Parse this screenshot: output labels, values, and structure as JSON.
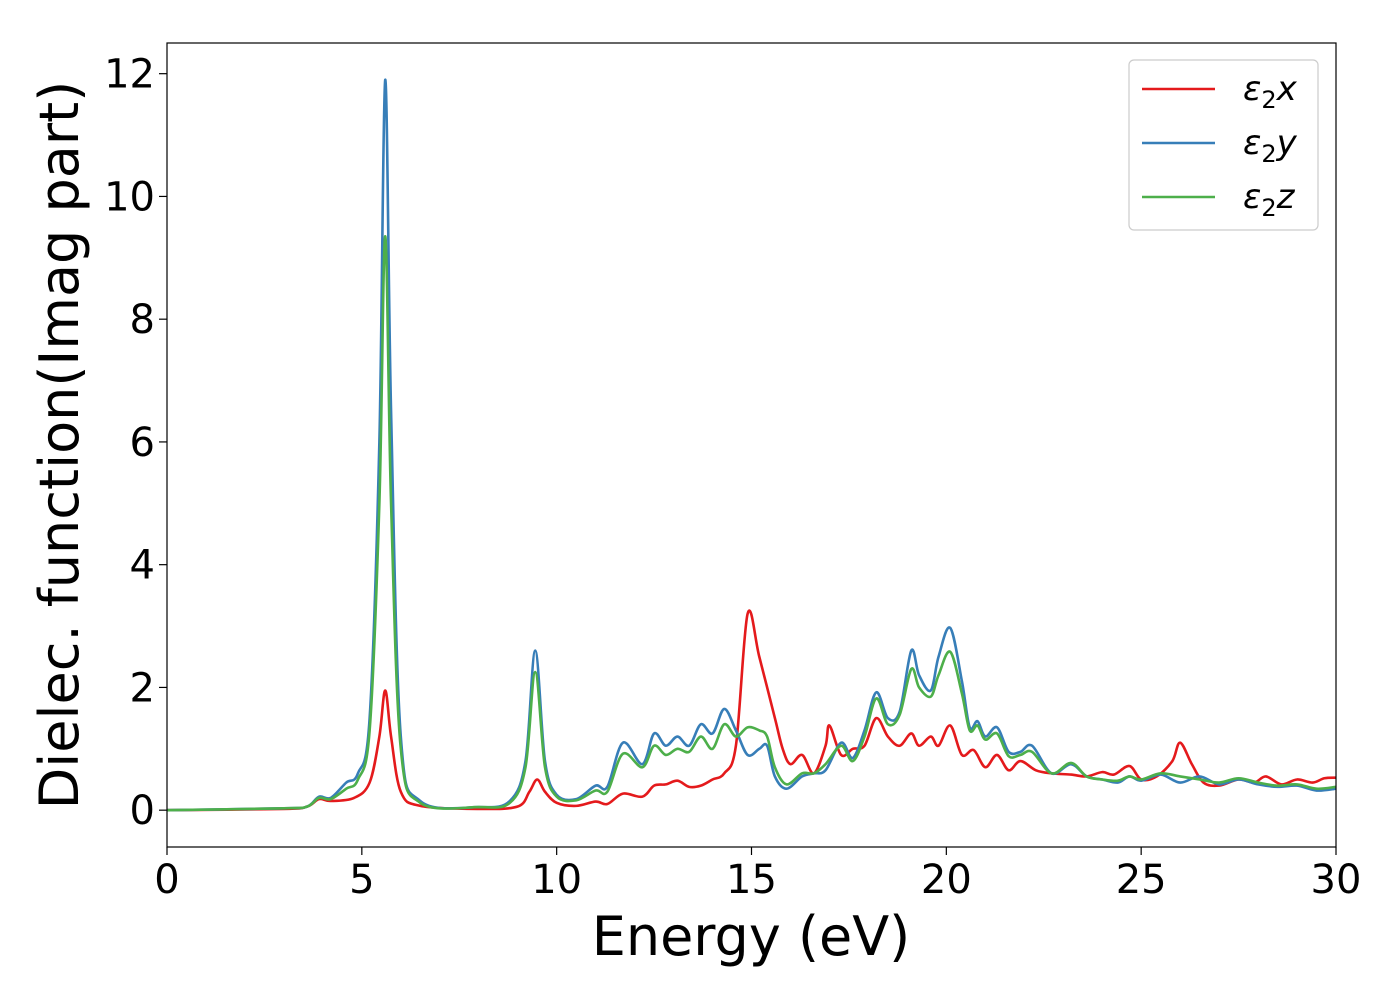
{
  "chart_data": {
    "type": "line",
    "title": "",
    "xlabel": "Energy (eV)",
    "ylabel": "Dielec. function(Imag part)",
    "xlim": [
      0,
      30
    ],
    "ylim": [
      -0.6,
      12.5
    ],
    "xticks": [
      0,
      5,
      10,
      15,
      20,
      25,
      30
    ],
    "yticks": [
      0,
      2,
      4,
      6,
      8,
      10,
      12
    ],
    "xtick_labels": [
      "0",
      "5",
      "10",
      "15",
      "20",
      "25",
      "30"
    ],
    "ytick_labels": [
      "0",
      "2",
      "4",
      "6",
      "8",
      "10",
      "12"
    ],
    "grid": false,
    "legend_position": "top-right",
    "series": [
      {
        "name": "ε₂x",
        "legend": {
          "base": "ε",
          "sub": "2",
          "suffix": "x"
        },
        "color": "#e41a1c",
        "points": [
          [
            0,
            0
          ],
          [
            3,
            0.02
          ],
          [
            3.6,
            0.06
          ],
          [
            3.9,
            0.18
          ],
          [
            4.2,
            0.15
          ],
          [
            4.8,
            0.2
          ],
          [
            5.2,
            0.45
          ],
          [
            5.45,
            1.2
          ],
          [
            5.6,
            1.95
          ],
          [
            5.75,
            1.2
          ],
          [
            6.0,
            0.3
          ],
          [
            6.5,
            0.07
          ],
          [
            8,
            0.02
          ],
          [
            9,
            0.06
          ],
          [
            9.3,
            0.3
          ],
          [
            9.5,
            0.5
          ],
          [
            9.7,
            0.3
          ],
          [
            10,
            0.12
          ],
          [
            10.5,
            0.07
          ],
          [
            11,
            0.14
          ],
          [
            11.3,
            0.1
          ],
          [
            11.7,
            0.27
          ],
          [
            12.2,
            0.22
          ],
          [
            12.5,
            0.4
          ],
          [
            12.8,
            0.42
          ],
          [
            13.1,
            0.48
          ],
          [
            13.4,
            0.38
          ],
          [
            13.7,
            0.4
          ],
          [
            14.0,
            0.5
          ],
          [
            14.3,
            0.6
          ],
          [
            14.6,
            1.05
          ],
          [
            14.9,
            3.2
          ],
          [
            15.2,
            2.5
          ],
          [
            15.6,
            1.5
          ],
          [
            15.8,
            1.0
          ],
          [
            16.0,
            0.75
          ],
          [
            16.3,
            0.9
          ],
          [
            16.6,
            0.6
          ],
          [
            16.9,
            1.05
          ],
          [
            17.0,
            1.38
          ],
          [
            17.3,
            0.9
          ],
          [
            17.6,
            1.0
          ],
          [
            17.9,
            1.05
          ],
          [
            18.2,
            1.5
          ],
          [
            18.5,
            1.2
          ],
          [
            18.8,
            1.05
          ],
          [
            19.1,
            1.25
          ],
          [
            19.3,
            1.05
          ],
          [
            19.6,
            1.2
          ],
          [
            19.8,
            1.05
          ],
          [
            20.1,
            1.38
          ],
          [
            20.4,
            0.9
          ],
          [
            20.7,
            0.98
          ],
          [
            21.0,
            0.7
          ],
          [
            21.3,
            0.9
          ],
          [
            21.6,
            0.65
          ],
          [
            21.9,
            0.8
          ],
          [
            22.3,
            0.65
          ],
          [
            22.7,
            0.6
          ],
          [
            23.2,
            0.58
          ],
          [
            23.6,
            0.55
          ],
          [
            24.0,
            0.62
          ],
          [
            24.3,
            0.58
          ],
          [
            24.7,
            0.72
          ],
          [
            25.0,
            0.5
          ],
          [
            25.4,
            0.55
          ],
          [
            25.8,
            0.8
          ],
          [
            26.0,
            1.1
          ],
          [
            26.3,
            0.75
          ],
          [
            26.6,
            0.45
          ],
          [
            27.0,
            0.4
          ],
          [
            27.5,
            0.5
          ],
          [
            27.9,
            0.45
          ],
          [
            28.2,
            0.55
          ],
          [
            28.6,
            0.42
          ],
          [
            29.0,
            0.5
          ],
          [
            29.4,
            0.45
          ],
          [
            29.7,
            0.52
          ],
          [
            30.0,
            0.53
          ]
        ]
      },
      {
        "name": "ε₂y",
        "legend": {
          "base": "ε",
          "sub": "2",
          "suffix": "y"
        },
        "color": "#377eb8",
        "points": [
          [
            0,
            0
          ],
          [
            3,
            0.03
          ],
          [
            3.6,
            0.06
          ],
          [
            3.9,
            0.22
          ],
          [
            4.2,
            0.2
          ],
          [
            4.6,
            0.45
          ],
          [
            4.9,
            0.6
          ],
          [
            5.2,
            1.5
          ],
          [
            5.45,
            6.0
          ],
          [
            5.6,
            11.9
          ],
          [
            5.75,
            6.5
          ],
          [
            6.0,
            1.2
          ],
          [
            6.5,
            0.15
          ],
          [
            8,
            0.05
          ],
          [
            8.8,
            0.15
          ],
          [
            9.2,
            0.8
          ],
          [
            9.45,
            2.6
          ],
          [
            9.7,
            0.8
          ],
          [
            10,
            0.25
          ],
          [
            10.5,
            0.18
          ],
          [
            11.0,
            0.4
          ],
          [
            11.3,
            0.38
          ],
          [
            11.7,
            1.1
          ],
          [
            12.2,
            0.75
          ],
          [
            12.5,
            1.25
          ],
          [
            12.8,
            1.05
          ],
          [
            13.1,
            1.2
          ],
          [
            13.4,
            1.05
          ],
          [
            13.7,
            1.4
          ],
          [
            14.0,
            1.25
          ],
          [
            14.3,
            1.65
          ],
          [
            14.6,
            1.3
          ],
          [
            14.9,
            0.9
          ],
          [
            15.2,
            1.0
          ],
          [
            15.4,
            1.05
          ],
          [
            15.6,
            0.55
          ],
          [
            15.9,
            0.35
          ],
          [
            16.3,
            0.55
          ],
          [
            16.6,
            0.6
          ],
          [
            16.9,
            0.65
          ],
          [
            17.3,
            1.1
          ],
          [
            17.6,
            0.85
          ],
          [
            17.9,
            1.3
          ],
          [
            18.2,
            1.92
          ],
          [
            18.5,
            1.5
          ],
          [
            18.8,
            1.6
          ],
          [
            19.1,
            2.6
          ],
          [
            19.3,
            2.2
          ],
          [
            19.6,
            1.95
          ],
          [
            19.8,
            2.5
          ],
          [
            20.1,
            2.97
          ],
          [
            20.4,
            2.1
          ],
          [
            20.6,
            1.35
          ],
          [
            20.8,
            1.45
          ],
          [
            21.0,
            1.2
          ],
          [
            21.3,
            1.35
          ],
          [
            21.6,
            0.95
          ],
          [
            21.9,
            0.95
          ],
          [
            22.2,
            1.05
          ],
          [
            22.7,
            0.6
          ],
          [
            23.2,
            0.75
          ],
          [
            23.6,
            0.55
          ],
          [
            24.0,
            0.5
          ],
          [
            24.4,
            0.45
          ],
          [
            24.7,
            0.55
          ],
          [
            25.0,
            0.48
          ],
          [
            25.5,
            0.58
          ],
          [
            26.0,
            0.45
          ],
          [
            26.5,
            0.55
          ],
          [
            27.0,
            0.42
          ],
          [
            27.5,
            0.5
          ],
          [
            28.0,
            0.42
          ],
          [
            28.5,
            0.38
          ],
          [
            29.0,
            0.4
          ],
          [
            29.5,
            0.32
          ],
          [
            30.0,
            0.35
          ]
        ]
      },
      {
        "name": "ε₂z",
        "legend": {
          "base": "ε",
          "sub": "2",
          "suffix": "z"
        },
        "color": "#4daf4a",
        "points": [
          [
            0,
            0
          ],
          [
            3,
            0.03
          ],
          [
            3.6,
            0.06
          ],
          [
            3.9,
            0.2
          ],
          [
            4.2,
            0.18
          ],
          [
            4.6,
            0.35
          ],
          [
            4.9,
            0.5
          ],
          [
            5.2,
            1.3
          ],
          [
            5.45,
            5.0
          ],
          [
            5.6,
            9.35
          ],
          [
            5.75,
            5.0
          ],
          [
            6.0,
            1.0
          ],
          [
            6.5,
            0.12
          ],
          [
            8,
            0.05
          ],
          [
            8.8,
            0.12
          ],
          [
            9.2,
            0.7
          ],
          [
            9.45,
            2.25
          ],
          [
            9.7,
            0.7
          ],
          [
            10,
            0.22
          ],
          [
            10.5,
            0.16
          ],
          [
            11.0,
            0.32
          ],
          [
            11.3,
            0.3
          ],
          [
            11.7,
            0.92
          ],
          [
            12.2,
            0.7
          ],
          [
            12.5,
            1.05
          ],
          [
            12.8,
            0.9
          ],
          [
            13.1,
            1.0
          ],
          [
            13.4,
            0.95
          ],
          [
            13.7,
            1.2
          ],
          [
            14.0,
            1.0
          ],
          [
            14.3,
            1.4
          ],
          [
            14.6,
            1.2
          ],
          [
            14.9,
            1.35
          ],
          [
            15.2,
            1.3
          ],
          [
            15.4,
            1.2
          ],
          [
            15.6,
            0.7
          ],
          [
            15.9,
            0.42
          ],
          [
            16.3,
            0.6
          ],
          [
            16.6,
            0.6
          ],
          [
            16.9,
            0.75
          ],
          [
            17.3,
            1.05
          ],
          [
            17.6,
            0.8
          ],
          [
            17.9,
            1.2
          ],
          [
            18.2,
            1.82
          ],
          [
            18.5,
            1.4
          ],
          [
            18.8,
            1.55
          ],
          [
            19.1,
            2.3
          ],
          [
            19.3,
            2.0
          ],
          [
            19.6,
            1.85
          ],
          [
            19.8,
            2.2
          ],
          [
            20.1,
            2.58
          ],
          [
            20.4,
            1.9
          ],
          [
            20.6,
            1.3
          ],
          [
            20.8,
            1.38
          ],
          [
            21.0,
            1.15
          ],
          [
            21.3,
            1.25
          ],
          [
            21.6,
            0.88
          ],
          [
            21.9,
            0.9
          ],
          [
            22.2,
            0.95
          ],
          [
            22.7,
            0.6
          ],
          [
            23.2,
            0.77
          ],
          [
            23.6,
            0.55
          ],
          [
            24.0,
            0.5
          ],
          [
            24.4,
            0.48
          ],
          [
            24.7,
            0.55
          ],
          [
            25.0,
            0.5
          ],
          [
            25.5,
            0.6
          ],
          [
            26.0,
            0.55
          ],
          [
            26.5,
            0.5
          ],
          [
            27.0,
            0.45
          ],
          [
            27.5,
            0.52
          ],
          [
            28.0,
            0.45
          ],
          [
            28.5,
            0.4
          ],
          [
            29.0,
            0.42
          ],
          [
            29.5,
            0.35
          ],
          [
            30.0,
            0.38
          ]
        ]
      }
    ]
  }
}
